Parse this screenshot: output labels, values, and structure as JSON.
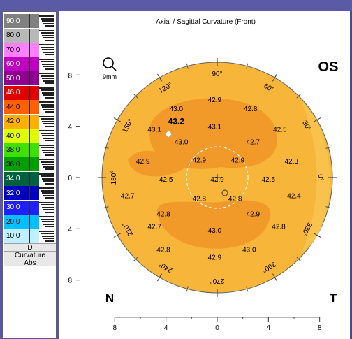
{
  "window": {
    "title": "Axial / Sagittal Curvature (Front)"
  },
  "legend": {
    "steps": [
      {
        "label": "90.0",
        "color": "#808080",
        "text": "#ffffff"
      },
      {
        "label": "80.0",
        "color": "#b8b8b8",
        "text": "#000000"
      },
      {
        "label": "70.0",
        "color": "#ff80ff",
        "text": "#000000"
      },
      {
        "label": "60.0",
        "color": "#c000c0",
        "text": "#ffffff"
      },
      {
        "label": "50.0",
        "color": "#900090",
        "text": "#ffffff"
      },
      {
        "label": "46.0",
        "color": "#e00000",
        "text": "#ffffff"
      },
      {
        "label": "44.0",
        "color": "#ff6000",
        "text": "#000000"
      },
      {
        "label": "42.0",
        "color": "#ffb000",
        "text": "#000000"
      },
      {
        "label": "40.0",
        "color": "#e0ff00",
        "text": "#000000"
      },
      {
        "label": "38.0",
        "color": "#40e000",
        "text": "#000000"
      },
      {
        "label": "36.0",
        "color": "#00a000",
        "text": "#000000"
      },
      {
        "label": "34.0",
        "color": "#006040",
        "text": "#ffffff"
      },
      {
        "label": "32.0",
        "color": "#0000c0",
        "text": "#ffffff"
      },
      {
        "label": "30.0",
        "color": "#2020ff",
        "text": "#ffffff"
      },
      {
        "label": "20.0",
        "color": "#00c0ff",
        "text": "#000000"
      },
      {
        "label": "10.0",
        "color": "#c0f0ff",
        "text": "#000000"
      }
    ],
    "footer": [
      "D",
      "Curvature",
      "Abs"
    ]
  },
  "map": {
    "eye": "OS",
    "nasal": "N",
    "temporal": "T",
    "zoom_label": "9mm",
    "angles": [
      {
        "label": "90°",
        "deg": 90
      },
      {
        "label": "60°",
        "deg": 60
      },
      {
        "label": "30°",
        "deg": 30
      },
      {
        "label": "0°",
        "deg": 0
      },
      {
        "label": "330°",
        "deg": 330
      },
      {
        "label": "300°",
        "deg": 300
      },
      {
        "label": "270°",
        "deg": 270
      },
      {
        "label": "240°",
        "deg": 240
      },
      {
        "label": "210°",
        "deg": 210
      },
      {
        "label": "180°",
        "deg": 180
      },
      {
        "label": "150°",
        "deg": 150
      },
      {
        "label": "120°",
        "deg": 120
      }
    ],
    "y_ticks": [
      "8",
      "4",
      "0",
      "4",
      "8"
    ],
    "x_ticks": [
      "8",
      "4",
      "0",
      "4",
      "8"
    ],
    "readings": [
      {
        "v": "43.0",
        "x": -3.2,
        "y": 5.4
      },
      {
        "v": "43.2",
        "x": -3.2,
        "y": 4.4,
        "bold": true
      },
      {
        "v": "43.1",
        "x": -4.9,
        "y": 3.8
      },
      {
        "v": "42.9",
        "x": -0.2,
        "y": 6.1
      },
      {
        "v": "42.8",
        "x": 2.6,
        "y": 5.4
      },
      {
        "v": "43.1",
        "x": -0.2,
        "y": 4.0
      },
      {
        "v": "42.5",
        "x": 4.9,
        "y": 3.8
      },
      {
        "v": "43.0",
        "x": -2.8,
        "y": 2.8
      },
      {
        "v": "42.7",
        "x": 2.8,
        "y": 2.8
      },
      {
        "v": "42.9",
        "x": -5.8,
        "y": 1.3
      },
      {
        "v": "42.9",
        "x": -1.4,
        "y": 1.4
      },
      {
        "v": "42.9",
        "x": 1.6,
        "y": 1.4
      },
      {
        "v": "42.3",
        "x": 5.8,
        "y": 1.3
      },
      {
        "v": "42.5",
        "x": -4.0,
        "y": -0.1
      },
      {
        "v": "42.9",
        "x": 0.0,
        "y": -0.1
      },
      {
        "v": "42.5",
        "x": 4.0,
        "y": -0.1
      },
      {
        "v": "42.7",
        "x": -7.0,
        "y": -1.4
      },
      {
        "v": "42.8",
        "x": -1.4,
        "y": -1.6
      },
      {
        "v": "42.8",
        "x": 1.4,
        "y": -1.6
      },
      {
        "v": "42.4",
        "x": 6.0,
        "y": -1.4
      },
      {
        "v": "42.8",
        "x": -4.2,
        "y": -2.8
      },
      {
        "v": "42.9",
        "x": 2.8,
        "y": -2.8
      },
      {
        "v": "42.7",
        "x": -4.9,
        "y": -3.8
      },
      {
        "v": "43.0",
        "x": -0.2,
        "y": -4.1
      },
      {
        "v": "42.8",
        "x": 4.8,
        "y": -3.8
      },
      {
        "v": "42.8",
        "x": -4.2,
        "y": -5.6
      },
      {
        "v": "43.0",
        "x": 2.5,
        "y": -5.6
      },
      {
        "v": "42.9",
        "x": -0.2,
        "y": -6.2
      }
    ]
  }
}
